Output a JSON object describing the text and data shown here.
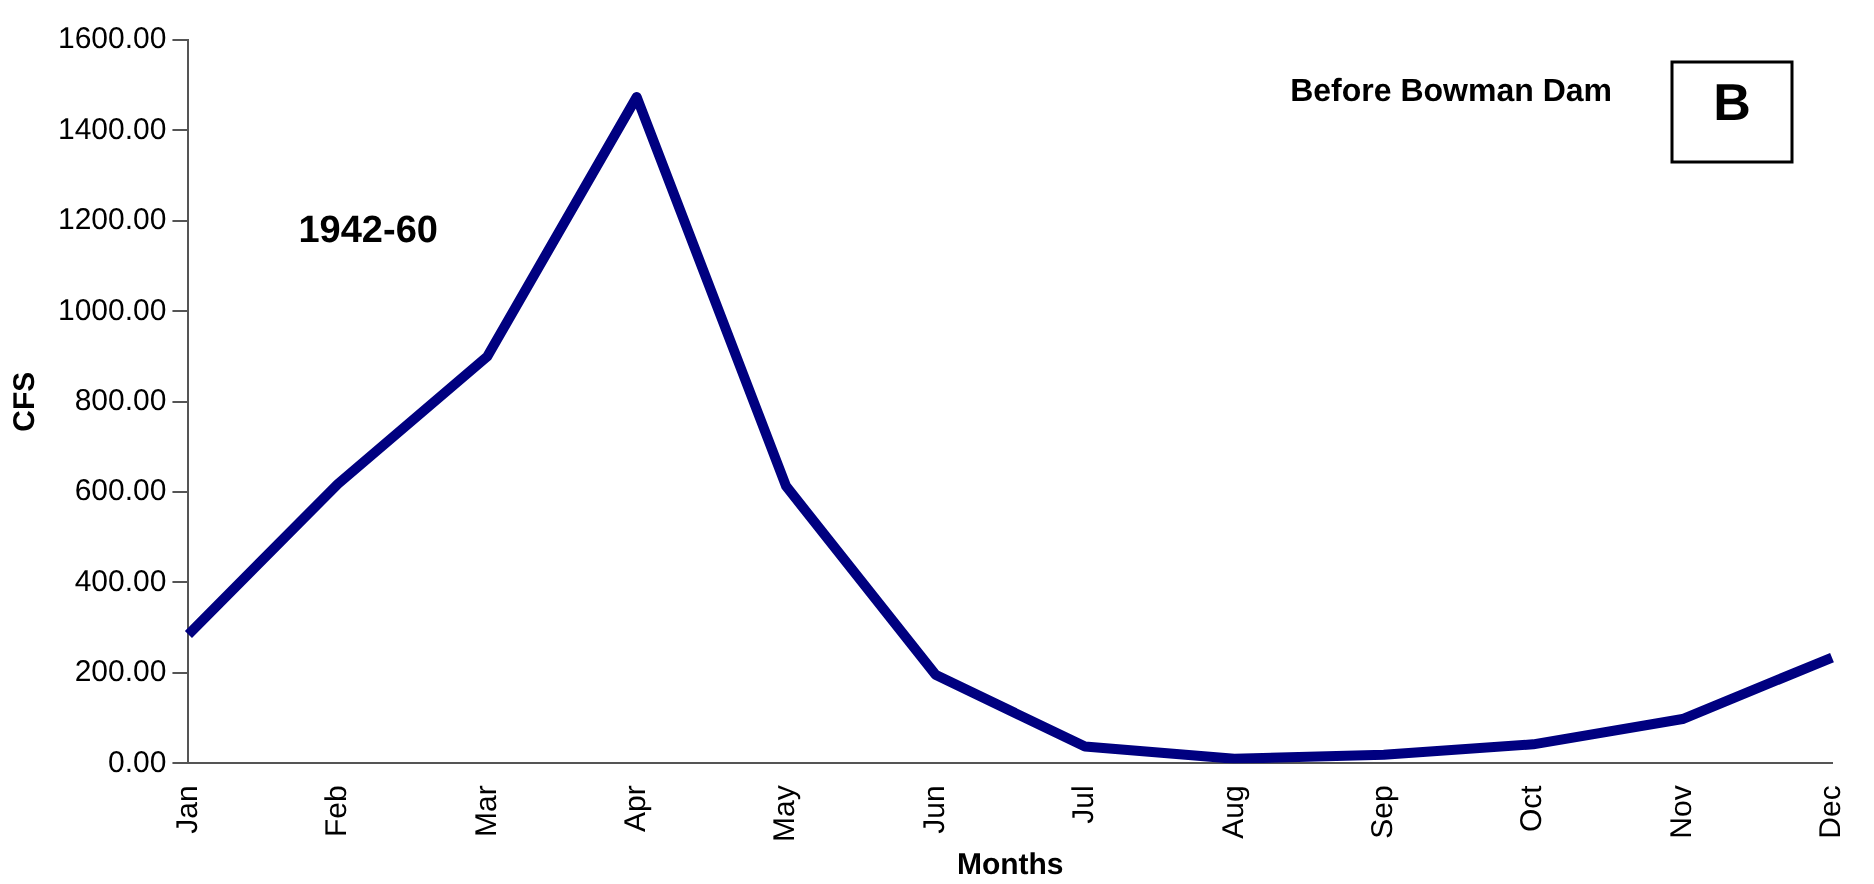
{
  "chart_data": {
    "type": "line",
    "xlabel": "Months",
    "ylabel": "CFS",
    "categories": [
      "Jan",
      "Feb",
      "Mar",
      "Apr",
      "May",
      "Jun",
      "Jul",
      "Aug",
      "Sep",
      "Oct",
      "Nov",
      "Dec"
    ],
    "series": [
      {
        "color": "#000080",
        "values": [
          285,
          618,
          900,
          1474,
          613,
          196,
          37,
          10,
          19,
          42,
          98,
          234
        ]
      }
    ],
    "ylim": [
      0,
      1600
    ],
    "yticks": [
      {
        "value": 0,
        "label": "0.00"
      },
      {
        "value": 200,
        "label": "200.00"
      },
      {
        "value": 400,
        "label": "400.00"
      },
      {
        "value": 600,
        "label": "600.00"
      },
      {
        "value": 800,
        "label": "800.00"
      },
      {
        "value": 1000,
        "label": "1000.00"
      },
      {
        "value": 1200,
        "label": "1200.00"
      },
      {
        "value": 1400,
        "label": "1400.00"
      },
      {
        "value": 1600,
        "label": "1600.00"
      }
    ],
    "annotations": [
      "Before Bowman Dam",
      "B",
      "1942-60"
    ],
    "grid": false,
    "legend": false,
    "marker": "none",
    "line_style": "solid"
  }
}
